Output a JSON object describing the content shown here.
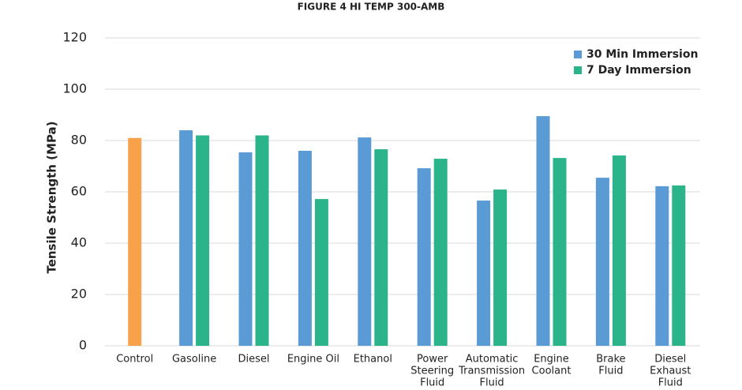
{
  "chart_data": {
    "type": "bar",
    "title": "FIGURE 4 HI TEMP 300-AMB",
    "y_label": "Tensile Strength (MPa)",
    "categories": [
      [
        "Control"
      ],
      [
        "Gasoline"
      ],
      [
        "Diesel"
      ],
      [
        "Engine Oil"
      ],
      [
        "Ethanol"
      ],
      [
        "Power",
        "Steering",
        "Fluid"
      ],
      [
        "Automatic",
        "Transmission",
        "Fluid"
      ],
      [
        "Engine",
        "Coolant"
      ],
      [
        "Brake",
        "Fluid"
      ],
      [
        "Diesel",
        "Exhaust",
        "Fluid"
      ]
    ],
    "control_value": 81,
    "control_color": "#f7a24a",
    "series": [
      {
        "name": "30 Min Immersion",
        "color": "#5b9bd5",
        "values": [
          null,
          84,
          75.4,
          76,
          81.2,
          69.2,
          56.6,
          89.5,
          65.5,
          62.2
        ]
      },
      {
        "name": "7 Day Immersion",
        "color": "#2bb38a",
        "values": [
          null,
          82,
          82,
          57.2,
          76.6,
          72.9,
          60.9,
          73.2,
          74.2,
          62.5
        ]
      }
    ],
    "ylim": [
      0,
      120
    ],
    "yticks": [
      0,
      20,
      40,
      60,
      80,
      100,
      120
    ],
    "grid": true,
    "legend": "upper right"
  }
}
